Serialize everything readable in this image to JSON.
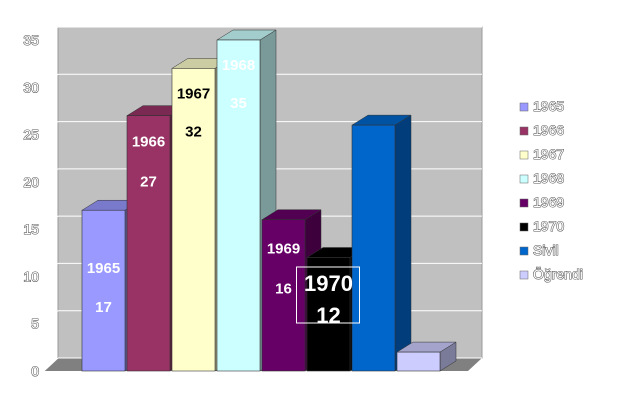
{
  "chart_data": {
    "type": "bar",
    "style": "3d-column",
    "categories": [
      "1965",
      "1966",
      "1967",
      "1968",
      "1969",
      "1970",
      "Sivil",
      "Öğrendi"
    ],
    "values": [
      17,
      27,
      32,
      35,
      16,
      12,
      26,
      2
    ],
    "ylim": [
      0,
      35
    ],
    "yticks": [
      "0",
      "5",
      "10",
      "15",
      "20",
      "25",
      "30",
      "35"
    ],
    "grid": true,
    "legend_position": "right",
    "series": [
      {
        "name": "1965",
        "value": 17,
        "color": "#9999ff",
        "label_text": [
          "1965",
          "17"
        ],
        "label_color": "#ffffff"
      },
      {
        "name": "1966",
        "value": 27,
        "color": "#993366",
        "label_text": [
          "1966",
          "27"
        ],
        "label_color": "#ffffff"
      },
      {
        "name": "1967",
        "value": 32,
        "color": "#ffffcc",
        "label_text": [
          "1967",
          "32"
        ],
        "label_color": "#000000"
      },
      {
        "name": "1968",
        "value": 35,
        "color": "#ccffff",
        "label_text": [
          "1968",
          "35"
        ],
        "label_color": "#ffffff"
      },
      {
        "name": "1969",
        "value": 16,
        "color": "#660066",
        "label_text": [
          "1969",
          "16"
        ],
        "label_color": "#ffffff"
      },
      {
        "name": "1970",
        "value": 12,
        "color": "#000000",
        "label_text": [
          "1970",
          "12"
        ],
        "label_color": "#ffffff"
      },
      {
        "name": "Sivil",
        "value": 26,
        "color": "#0066cc",
        "label_text": [],
        "label_color": "#ffffff"
      },
      {
        "name": "Öğrendi",
        "value": 2,
        "color": "#ccccff",
        "label_text": [],
        "label_color": "#000000"
      }
    ],
    "colors": {
      "wall": "#c0c0c0",
      "floor": "#808080",
      "gridline": "#ffffff",
      "axis": "#808080"
    }
  }
}
